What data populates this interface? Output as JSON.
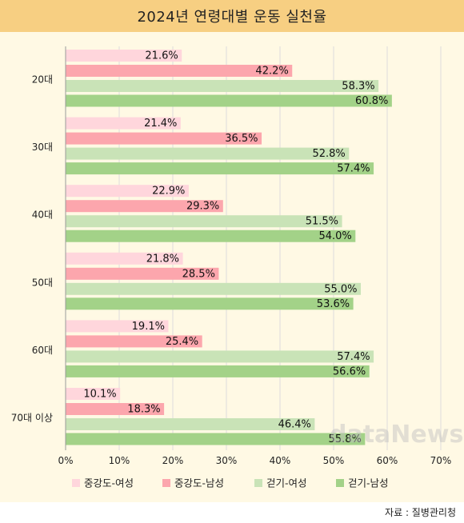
{
  "title": "2024년 연령대별 운동 실천율",
  "source": "자료 : 질병관리청",
  "watermark": "dataNews",
  "chart_data": {
    "type": "bar",
    "orientation": "horizontal",
    "title": "2024년 연령대별 운동 실천율",
    "categories": [
      "20대",
      "30대",
      "40대",
      "50대",
      "60대",
      "70대 이상"
    ],
    "series": [
      {
        "name": "중강도-여성",
        "color": "#ffd6dc",
        "values": [
          21.6,
          21.4,
          22.9,
          21.8,
          19.1,
          10.1
        ]
      },
      {
        "name": "중강도-남성",
        "color": "#fca6ad",
        "values": [
          42.2,
          36.5,
          29.3,
          28.5,
          25.4,
          18.3
        ]
      },
      {
        "name": "걷기-여성",
        "color": "#c9e3b7",
        "values": [
          58.3,
          52.8,
          51.5,
          55.0,
          57.4,
          46.4
        ]
      },
      {
        "name": "걷기-남성",
        "color": "#a3d288",
        "values": [
          60.8,
          57.4,
          54.0,
          53.6,
          56.6,
          55.8
        ]
      }
    ],
    "xlim": [
      0,
      70
    ],
    "xticks": [
      0,
      10,
      20,
      30,
      40,
      50,
      60,
      70
    ],
    "tick_format": "{v}%",
    "value_format": "{v}%",
    "gridlines": true,
    "legend_position": "bottom"
  }
}
